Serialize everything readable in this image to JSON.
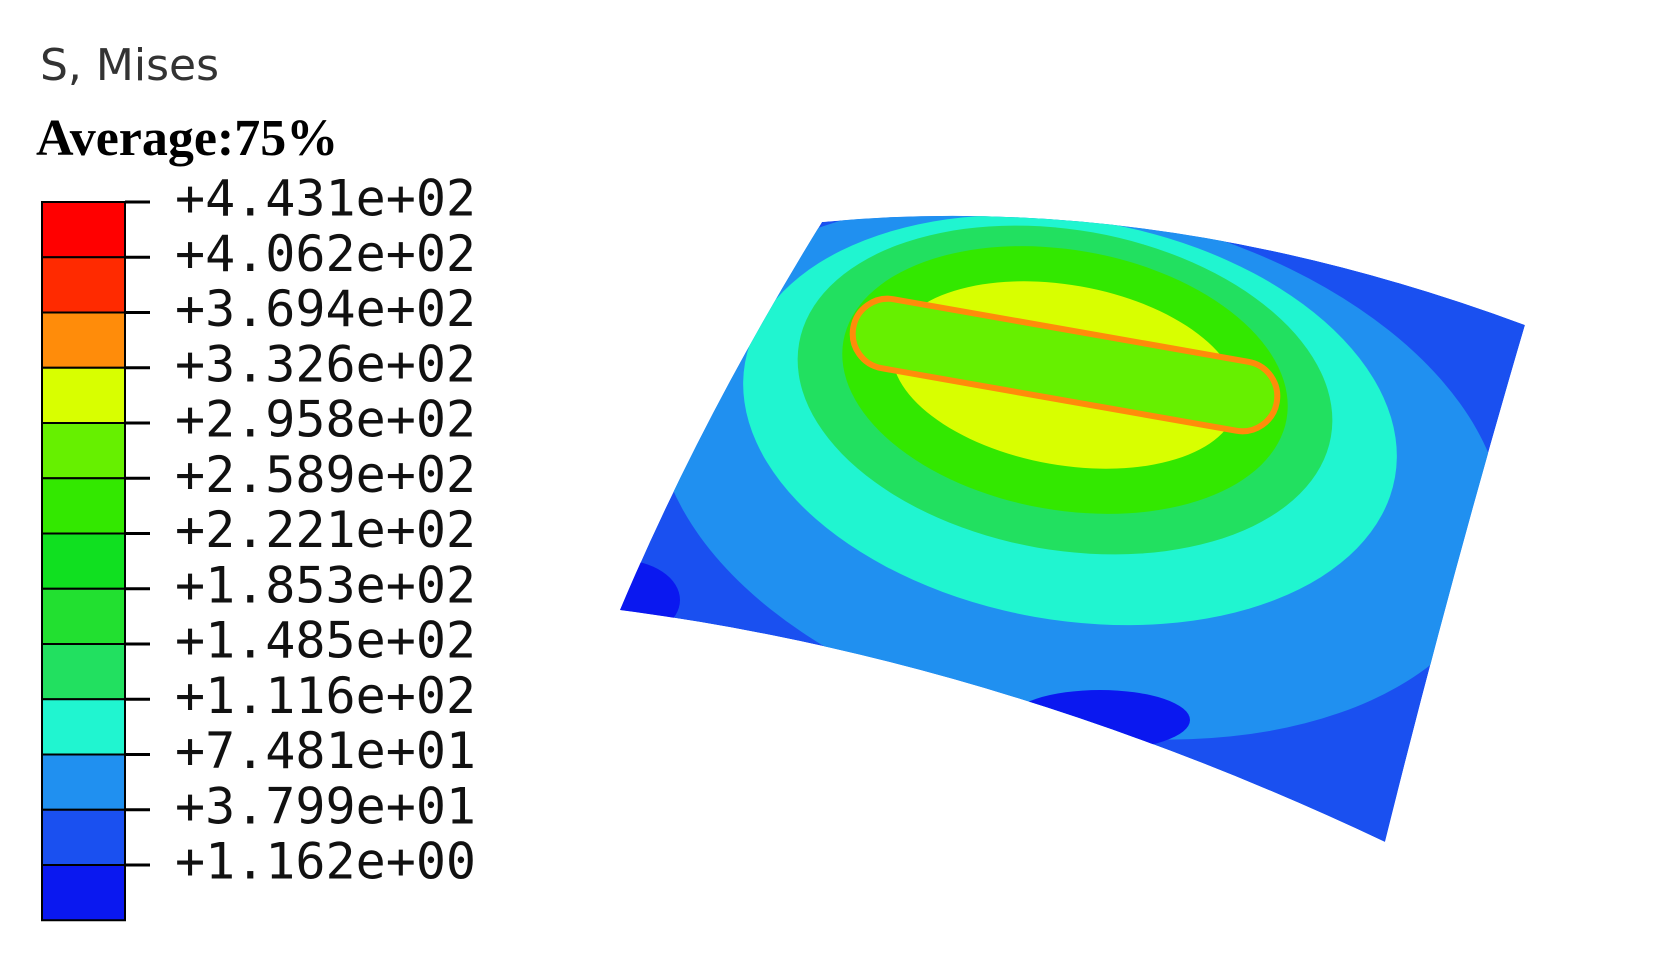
{
  "legend": {
    "title": "S, Mises",
    "subtitle": "Average:75%",
    "levels": [
      "+4.431e+02",
      "+4.062e+02",
      "+3.694e+02",
      "+3.326e+02",
      "+2.958e+02",
      "+2.589e+02",
      "+2.221e+02",
      "+1.853e+02",
      "+1.485e+02",
      "+1.116e+02",
      "+7.481e+01",
      "+3.799e+01",
      "+1.162e+00"
    ],
    "colors": [
      "#ff0000",
      "#ff2a00",
      "#ff8c0a",
      "#d8ff00",
      "#66f000",
      "#33e800",
      "#10e020",
      "#22e030",
      "#22e060",
      "#20f5d0",
      "#2090f0",
      "#1a50f0",
      "#0a18f0"
    ]
  }
}
